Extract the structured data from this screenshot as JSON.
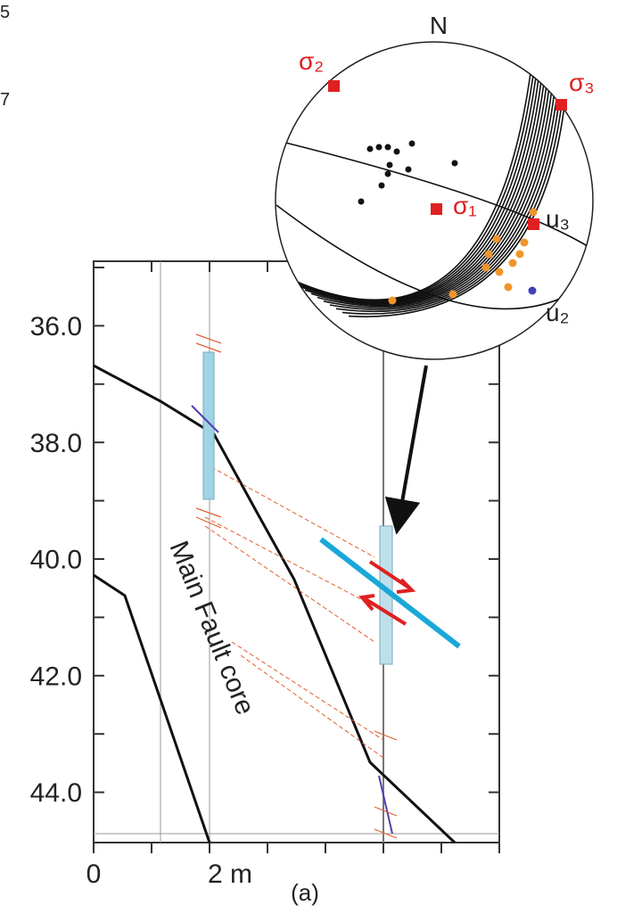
{
  "corner_labels": [
    "5",
    "7"
  ],
  "stereonet": {
    "north": "N",
    "sigma1": "σ₁",
    "sigma2": "σ₂",
    "sigma3": "σ₃",
    "u2": "u₂",
    "u3": "u₃"
  },
  "plot": {
    "y_labels": [
      "36.0",
      "38.0",
      "40.0",
      "42.0",
      "44.0"
    ],
    "x_labels": [
      "0",
      "2 m"
    ],
    "zone_label": "Main Fault core",
    "panel": "(a)"
  }
}
